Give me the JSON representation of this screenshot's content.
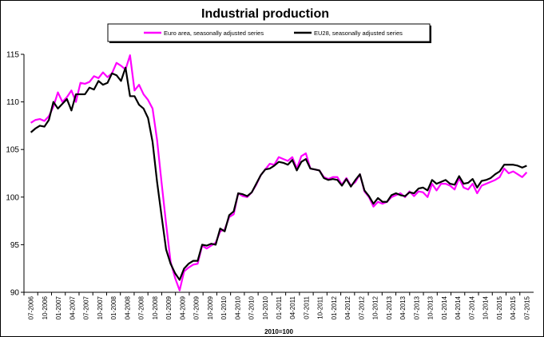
{
  "chart_data": {
    "type": "line",
    "title": "Industrial production",
    "xlabel": "2010=100",
    "ylabel": "",
    "ylim": [
      90,
      115
    ],
    "yticks": [
      90,
      95,
      100,
      105,
      110,
      115
    ],
    "x_tick_labels": [
      "07-2006",
      "10-2006",
      "01-2007",
      "04-2007",
      "07-2007",
      "10-2007",
      "01-2008",
      "04-2008",
      "07-2008",
      "10-2008",
      "01-2009",
      "04-2009",
      "07-2009",
      "10-2009",
      "01-2010",
      "04-2010",
      "07-2010",
      "10-2010",
      "01-2011",
      "04-2011",
      "07-2011",
      "10-2011",
      "01-2012",
      "04-2012",
      "07-2012",
      "10-2012",
      "01-2013",
      "04-2013",
      "07-2013",
      "10-2013",
      "01-2014",
      "04-2014",
      "07-2014",
      "10-2014",
      "01-2015",
      "04-2015",
      "07-2015"
    ],
    "x_start": "07-2006",
    "x_end": "07-2015",
    "legend_placement": "top",
    "grid": false,
    "series": [
      {
        "name": "Euro area, seasonally adjusted series",
        "color": "#ff00ff",
        "values": [
          107.8,
          108.1,
          108.2,
          108.0,
          108.5,
          109.5,
          111.0,
          110.0,
          110.5,
          111.2,
          110.0,
          112.0,
          111.9,
          112.1,
          112.7,
          112.5,
          113.1,
          112.6,
          113.0,
          114.1,
          113.8,
          113.4,
          114.9,
          111.2,
          111.8,
          110.8,
          110.2,
          109.3,
          106.0,
          101.5,
          97.2,
          93.2,
          91.5,
          90.2,
          92.2,
          92.6,
          92.9,
          93.0,
          94.9,
          94.6,
          94.9,
          95.2,
          96.4,
          96.6,
          97.9,
          98.2,
          100.4,
          100.1,
          100.0,
          100.5,
          101.3,
          102.3,
          102.9,
          103.5,
          103.4,
          104.2,
          104.0,
          103.8,
          104.2,
          103.0,
          104.3,
          104.6,
          103.0,
          102.9,
          102.8,
          102.1,
          101.9,
          102.1,
          102.1,
          101.3,
          102.0,
          101.2,
          101.6,
          102.4,
          100.6,
          100.0,
          99.0,
          99.5,
          99.3,
          99.5,
          100.0,
          100.2,
          100.4,
          100.0,
          100.6,
          100.1,
          100.6,
          100.5,
          100.0,
          101.4,
          100.7,
          101.4,
          101.4,
          101.2,
          100.8,
          102.0,
          101.0,
          100.8,
          101.4,
          100.4,
          101.2,
          101.4,
          101.6,
          101.8,
          102.1,
          103.0,
          102.5,
          102.7,
          102.4,
          102.1,
          102.6
        ]
      },
      {
        "name": "EU28, seasonally adjusted series",
        "color": "#000000",
        "values": [
          106.8,
          107.2,
          107.5,
          107.4,
          108.1,
          110.0,
          109.3,
          109.8,
          110.3,
          109.1,
          110.8,
          110.8,
          110.8,
          111.5,
          111.3,
          112.2,
          111.8,
          112.0,
          113.0,
          112.8,
          112.2,
          113.6,
          110.6,
          110.6,
          109.7,
          109.3,
          108.3,
          105.8,
          101.6,
          98.0,
          94.5,
          93.0,
          92.0,
          91.3,
          92.5,
          93.0,
          93.3,
          93.3,
          95.0,
          94.9,
          95.1,
          95.0,
          96.7,
          96.4,
          98.1,
          98.5,
          100.4,
          100.3,
          100.1,
          100.5,
          101.4,
          102.3,
          102.9,
          103.0,
          103.3,
          103.7,
          103.6,
          103.4,
          103.9,
          102.8,
          103.7,
          104.0,
          103.0,
          102.9,
          102.8,
          102.0,
          101.8,
          101.9,
          101.8,
          101.2,
          101.9,
          101.1,
          101.8,
          102.4,
          100.7,
          100.1,
          99.3,
          99.9,
          99.5,
          99.5,
          100.2,
          100.4,
          100.2,
          100.1,
          100.5,
          100.4,
          100.9,
          101.0,
          100.7,
          101.8,
          101.4,
          101.6,
          101.8,
          101.4,
          101.3,
          102.2,
          101.4,
          101.5,
          101.9,
          101.0,
          101.7,
          101.8,
          102.0,
          102.4,
          102.7,
          103.4,
          103.4,
          103.4,
          103.3,
          103.1,
          103.3
        ]
      }
    ]
  }
}
